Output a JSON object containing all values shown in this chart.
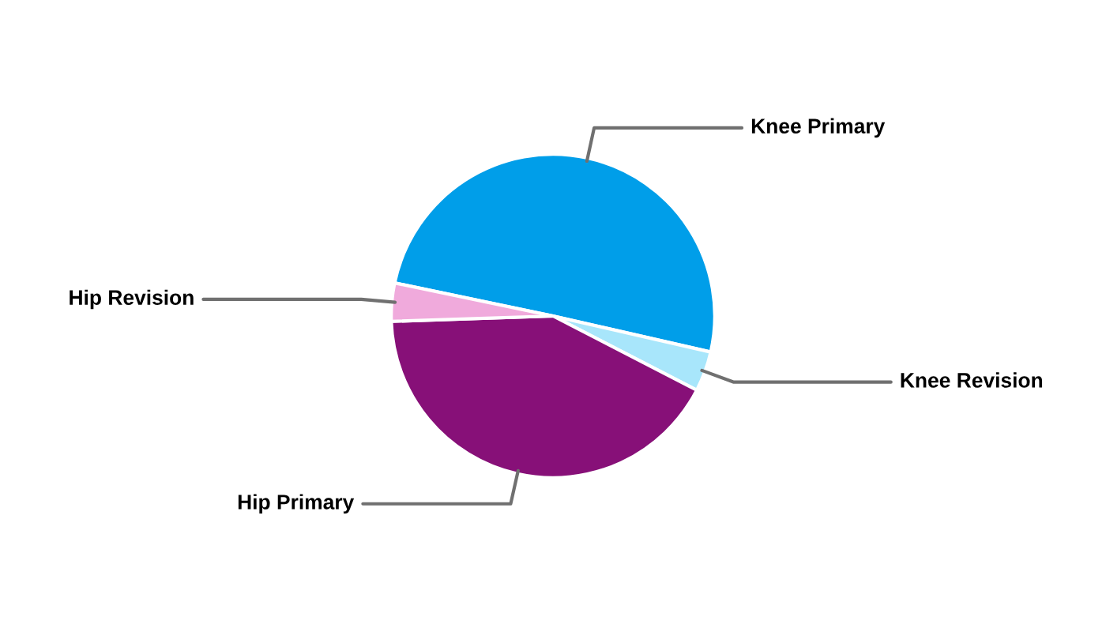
{
  "chart_data": {
    "type": "pie",
    "categories": [
      "Knee Primary",
      "Knee Revision",
      "Hip Primary",
      "Hip Revision"
    ],
    "values": [
      50.3,
      4.0,
      41.9,
      3.8
    ],
    "colors": [
      "#009ee9",
      "#a8e6fb",
      "#871078",
      "#f0aadc"
    ],
    "legend": false
  }
}
